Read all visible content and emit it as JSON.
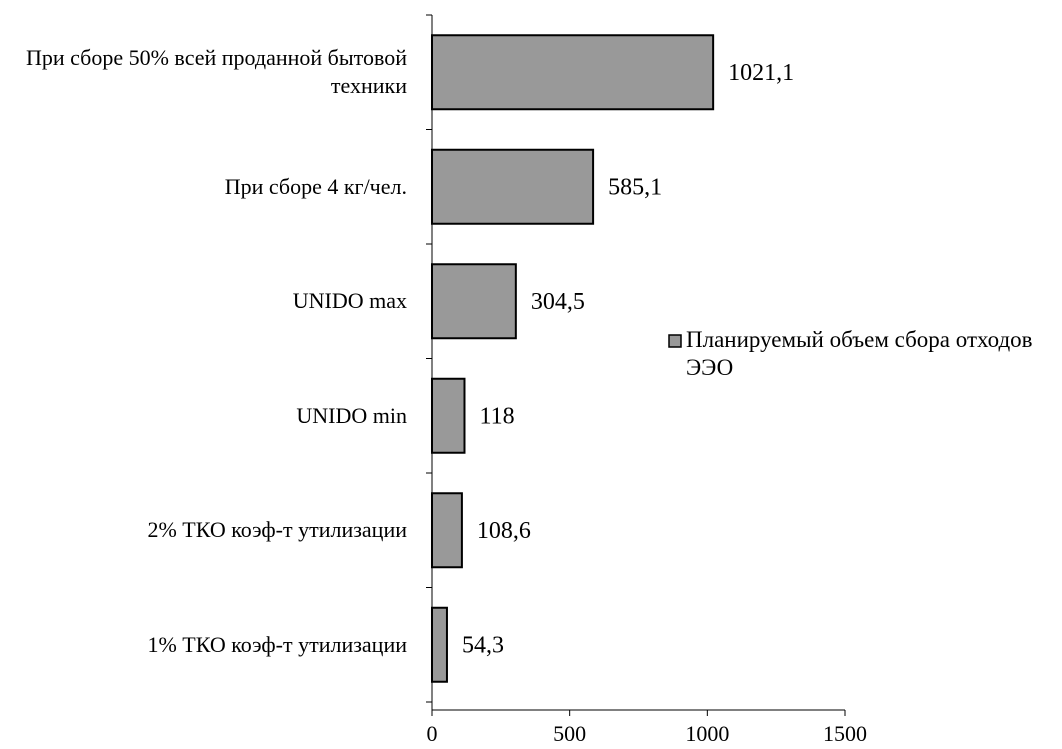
{
  "chart_data": {
    "type": "hbar",
    "categories": [
      "При сборе 50% всей проданной бытовой техники",
      "При сборе 4 кг/чел.",
      "UNIDO max",
      "UNIDO min",
      "2% ТКО коэф-т утилизации",
      "1% ТКО коэф-т утилизации"
    ],
    "series": [
      {
        "name": "Планируемый объем сбора отходов ЭЭО",
        "color": "#999999",
        "values": [
          1021.1,
          585.1,
          304.5,
          118,
          108.6,
          54.3
        ],
        "value_labels": [
          "1021,1",
          "585,1",
          "304,5",
          "118",
          "108,6",
          "54,3"
        ]
      }
    ],
    "xlim": [
      0,
      1500
    ],
    "xticks": [
      0,
      500,
      1000,
      1500
    ],
    "legend": "right",
    "grid": false
  }
}
